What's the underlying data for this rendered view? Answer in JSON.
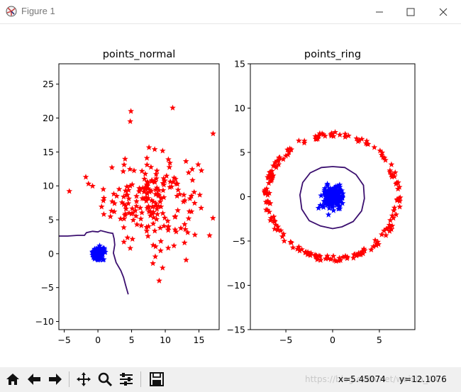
{
  "window": {
    "title": "Figure 1",
    "app_icon": "matplotlib-figure-icon",
    "controls": [
      "minimize-icon",
      "maximize-icon",
      "close-icon"
    ]
  },
  "toolbar": {
    "buttons": [
      "home-icon",
      "back-arrow-icon",
      "forward-arrow-icon",
      "pan-icon",
      "zoom-icon",
      "configure-subplots-icon",
      "save-icon"
    ],
    "coord_x": "x=5.45074",
    "coord_y": "y=12.1076",
    "watermark": "https://blog.csdn.net/weixin_44..."
  },
  "chart_data": [
    {
      "type": "scatter",
      "title": "points_normal",
      "xlabel": "",
      "ylabel": "",
      "xlim": [
        -5.8,
        18
      ],
      "ylim": [
        -11.2,
        28
      ],
      "xticks": [
        -5,
        0,
        5,
        10,
        15
      ],
      "yticks": [
        -10,
        -5,
        0,
        5,
        10,
        15,
        20,
        25
      ],
      "series": [
        {
          "marker": "star",
          "color": "#ff0000",
          "role": "outer",
          "distribution": {
            "shape": "gaussian",
            "center": [
              8,
              8
            ],
            "spread": [
              3.5,
              3.3
            ],
            "count": 200
          }
        },
        {
          "marker": "star",
          "color": "#0000ff",
          "role": "inner",
          "distribution": {
            "shape": "gaussian",
            "center": [
              0,
              0
            ],
            "spread": [
              0.4,
              0.4
            ],
            "count": 200
          }
        }
      ],
      "outliers": [
        [
          4.9,
          21
        ],
        [
          4.8,
          19.5
        ],
        [
          11.1,
          21.5
        ],
        [
          17.1,
          17.7
        ],
        [
          -1.8,
          11.3
        ],
        [
          -1.4,
          10.3
        ],
        [
          9.1,
          -4
        ],
        [
          4.8,
          0.8
        ]
      ],
      "boundary": {
        "color": "#3b0f6f",
        "points": [
          [
            -5.8,
            2.6
          ],
          [
            -4.5,
            2.6
          ],
          [
            -3,
            2.7
          ],
          [
            -2,
            2.7
          ],
          [
            -1.7,
            3.1
          ],
          [
            -0.8,
            3.3
          ],
          [
            0,
            3.2
          ],
          [
            0.4,
            3.4
          ],
          [
            1.6,
            3.1
          ],
          [
            2.2,
            3
          ],
          [
            2.4,
            2.2
          ],
          [
            2.5,
            1.3
          ],
          [
            2.3,
            0.1
          ],
          [
            2.7,
            -1.3
          ],
          [
            3.4,
            -2.5
          ],
          [
            3.8,
            -3.5
          ],
          [
            4.1,
            -4.6
          ],
          [
            4.5,
            -6
          ]
        ]
      }
    },
    {
      "type": "scatter",
      "title": "points_ring",
      "xlabel": "",
      "ylabel": "",
      "xlim": [
        -8.8,
        8.8
      ],
      "ylim": [
        -15,
        15
      ],
      "xticks": [
        -5,
        0,
        5
      ],
      "yticks": [
        -15,
        -10,
        -5,
        0,
        5,
        10,
        15
      ],
      "series": [
        {
          "marker": "star",
          "color": "#ff0000",
          "role": "ring",
          "distribution": {
            "shape": "ring",
            "center": [
              0,
              0
            ],
            "radius": [
              6.7,
              7.3
            ],
            "count": 200
          }
        },
        {
          "marker": "star",
          "color": "#0000ff",
          "role": "inner",
          "distribution": {
            "shape": "gaussian",
            "center": [
              0,
              0
            ],
            "spread": [
              0.5,
              0.6
            ],
            "count": 200
          }
        }
      ],
      "boundary": {
        "color": "#3b0f6f",
        "points": [
          [
            0,
            3.4
          ],
          [
            1.3,
            3.3
          ],
          [
            2.5,
            2.5
          ],
          [
            3.3,
            1.3
          ],
          [
            3.4,
            -0.2
          ],
          [
            3.1,
            -1.6
          ],
          [
            2.2,
            -2.8
          ],
          [
            1,
            -3.4
          ],
          [
            0,
            -3.6
          ],
          [
            -1.3,
            -3.3
          ],
          [
            -2.5,
            -2.7
          ],
          [
            -3.3,
            -1.4
          ],
          [
            -3.5,
            0.2
          ],
          [
            -3.2,
            1.6
          ],
          [
            -2.4,
            2.7
          ],
          [
            -1.2,
            3.3
          ],
          [
            0,
            3.4
          ]
        ]
      }
    }
  ]
}
